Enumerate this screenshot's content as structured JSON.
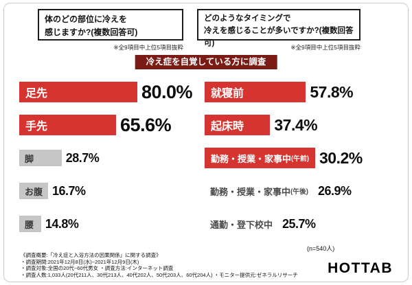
{
  "banner": {
    "text": "冷え症を自覚している方に調査"
  },
  "left_chart": {
    "question_line1": "体のどの部位に冷えを",
    "question_line2": "感じますか?(複数回答可)",
    "note": "※全9項目中上位5項目抜粋",
    "bars": [
      {
        "label": "足先",
        "suffix": "",
        "value": "80.0%",
        "pct": 80.0
      },
      {
        "label": "手先",
        "suffix": "",
        "value": "65.6%",
        "pct": 65.6
      },
      {
        "label": "脚",
        "suffix": "",
        "value": "28.7%",
        "pct": 28.7
      },
      {
        "label": "お腹",
        "suffix": "",
        "value": "16.7%",
        "pct": 16.7
      },
      {
        "label": "腰",
        "suffix": "",
        "value": "14.8%",
        "pct": 14.8
      }
    ]
  },
  "right_chart": {
    "question_line1": "どのようなタイミングで",
    "question_line2": "冷えを感じることが多いですか?(複数回答可)",
    "note": "※全9項目中上位5項目抜粋",
    "bars": [
      {
        "label": "就寝前",
        "suffix": "",
        "value": "57.8%",
        "pct": 57.8
      },
      {
        "label": "起床時",
        "suffix": "",
        "value": "37.4%",
        "pct": 37.4
      },
      {
        "label": "勤務・授業・家事中",
        "suffix": "(午前)",
        "value": "30.2%",
        "pct": 30.2
      },
      {
        "label": "勤務・授業・家事中",
        "suffix": "(午後)",
        "value": "26.9%",
        "pct": 26.9
      },
      {
        "label": "通勤・登下校中",
        "suffix": "",
        "value": "25.7%",
        "pct": 25.7
      }
    ]
  },
  "footer": {
    "sample": "(n=540人)",
    "line1": "《調査概要:「冷え症と入浴方法の因果関係」に関する調査》",
    "line2": "・調査期間:2021年12月8日(水)~2021年12月9日(木)",
    "line3": "・調査対象:全国の20代~60代男女 ・調査方法:インターネット調査",
    "line4": "・調査人数:1,033人(20代211人、30代213人、40代202人、50代203人、60代204人) ・モニター提供元:ゼネラルリサーチ",
    "logo": "HOTTAB"
  },
  "colors": {
    "red": "#d63430",
    "maroon": "#7b1b16",
    "gray": "#c6c6c6"
  },
  "chart_data": [
    {
      "type": "bar",
      "orientation": "horizontal",
      "title": "体のどの部位に冷えを感じますか?(複数回答可)",
      "note": "※全9項目中上位5項目抜粋",
      "categories": [
        "足先",
        "手先",
        "脚",
        "お腹",
        "腰"
      ],
      "values": [
        80.0,
        65.6,
        28.7,
        16.7,
        14.8
      ],
      "unit": "%",
      "highlight_color": "#d63430",
      "muted_color": "#c6c6c6",
      "highlighted": [
        "足先",
        "手先"
      ],
      "n": 540
    },
    {
      "type": "bar",
      "orientation": "horizontal",
      "title": "どのようなタイミングで冷えを感じることが多いですか?(複数回答可)",
      "note": "※全9項目中上位5項目抜粋",
      "categories": [
        "就寝前",
        "起床時",
        "勤務・授業・家事中(午前)",
        "勤務・授業・家事中(午後)",
        "通勤・登下校中"
      ],
      "values": [
        57.8,
        37.4,
        30.2,
        26.9,
        25.7
      ],
      "unit": "%",
      "highlight_color": "#d63430",
      "highlighted": [
        "就寝前",
        "起床時",
        "勤務・授業・家事中(午前)"
      ],
      "n": 540
    }
  ]
}
